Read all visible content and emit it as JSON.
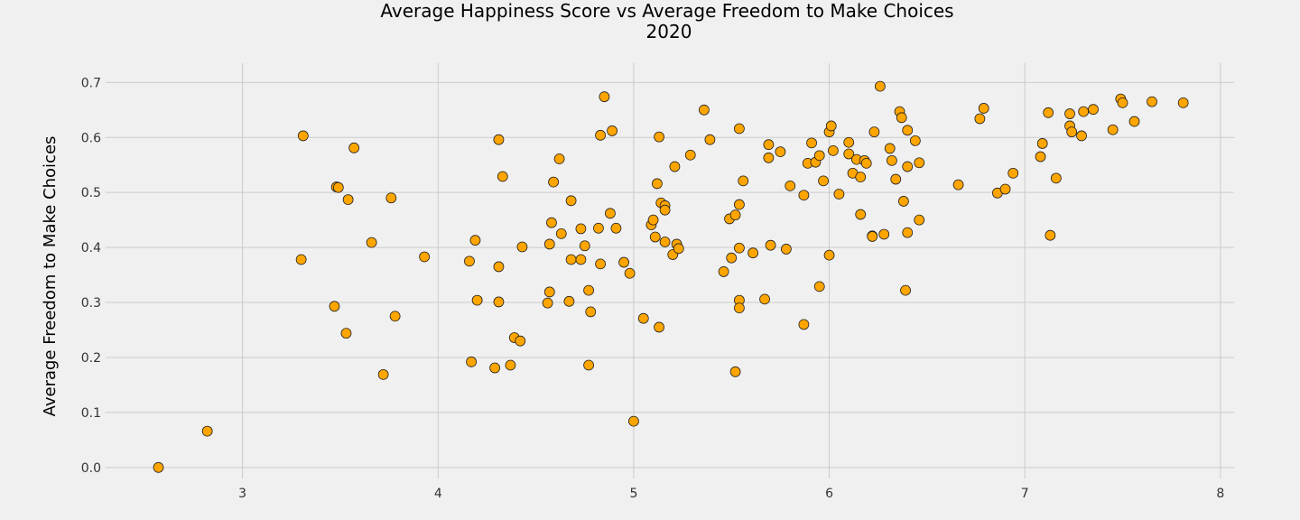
{
  "chart_data": {
    "type": "scatter",
    "title_lines": [
      "Average Happiness Score vs Average Freedom to Make Choices",
      "2020"
    ],
    "xlabel": "",
    "ylabel": "Average Freedom to Make Choices",
    "xlim": [
      2.3,
      8.07
    ],
    "ylim": [
      -0.02,
      0.735
    ],
    "x_ticks": [
      3,
      4,
      5,
      6,
      7,
      8
    ],
    "y_ticks": [
      0.0,
      0.1,
      0.2,
      0.3,
      0.4,
      0.5,
      0.6,
      0.7
    ],
    "y_tick_labels": [
      "0.0",
      "0.1",
      "0.2",
      "0.3",
      "0.4",
      "0.5",
      "0.6",
      "0.7"
    ],
    "grid": true,
    "marker_color": "#ffa500",
    "marker_edge_color": "#222222",
    "points": [
      [
        2.57,
        0.0
      ],
      [
        2.82,
        0.066
      ],
      [
        3.3,
        0.378
      ],
      [
        3.31,
        0.603
      ],
      [
        3.47,
        0.293
      ],
      [
        3.48,
        0.51
      ],
      [
        3.49,
        0.509
      ],
      [
        3.53,
        0.244
      ],
      [
        3.54,
        0.487
      ],
      [
        3.57,
        0.581
      ],
      [
        3.66,
        0.409
      ],
      [
        3.72,
        0.169
      ],
      [
        3.76,
        0.49
      ],
      [
        3.78,
        0.275
      ],
      [
        3.93,
        0.383
      ],
      [
        4.16,
        0.375
      ],
      [
        4.17,
        0.192
      ],
      [
        4.19,
        0.413
      ],
      [
        4.2,
        0.304
      ],
      [
        4.29,
        0.181
      ],
      [
        4.31,
        0.365
      ],
      [
        4.31,
        0.301
      ],
      [
        4.31,
        0.596
      ],
      [
        4.33,
        0.529
      ],
      [
        4.37,
        0.186
      ],
      [
        4.39,
        0.236
      ],
      [
        4.42,
        0.23
      ],
      [
        4.43,
        0.401
      ],
      [
        4.56,
        0.299
      ],
      [
        4.57,
        0.406
      ],
      [
        4.57,
        0.319
      ],
      [
        4.58,
        0.445
      ],
      [
        4.59,
        0.519
      ],
      [
        4.62,
        0.561
      ],
      [
        4.63,
        0.425
      ],
      [
        4.67,
        0.302
      ],
      [
        4.68,
        0.485
      ],
      [
        4.68,
        0.378
      ],
      [
        4.73,
        0.434
      ],
      [
        4.73,
        0.378
      ],
      [
        4.75,
        0.403
      ],
      [
        4.77,
        0.322
      ],
      [
        4.77,
        0.186
      ],
      [
        4.78,
        0.283
      ],
      [
        4.82,
        0.435
      ],
      [
        4.83,
        0.37
      ],
      [
        4.83,
        0.604
      ],
      [
        4.85,
        0.674
      ],
      [
        4.88,
        0.462
      ],
      [
        4.89,
        0.612
      ],
      [
        4.91,
        0.435
      ],
      [
        4.95,
        0.373
      ],
      [
        4.98,
        0.353
      ],
      [
        5.0,
        0.084
      ],
      [
        5.05,
        0.271
      ],
      [
        5.09,
        0.441
      ],
      [
        5.1,
        0.45
      ],
      [
        5.11,
        0.419
      ],
      [
        5.12,
        0.516
      ],
      [
        5.13,
        0.601
      ],
      [
        5.13,
        0.255
      ],
      [
        5.14,
        0.481
      ],
      [
        5.16,
        0.476
      ],
      [
        5.16,
        0.468
      ],
      [
        5.16,
        0.41
      ],
      [
        5.2,
        0.387
      ],
      [
        5.21,
        0.547
      ],
      [
        5.22,
        0.406
      ],
      [
        5.23,
        0.398
      ],
      [
        5.29,
        0.568
      ],
      [
        5.36,
        0.65
      ],
      [
        5.39,
        0.596
      ],
      [
        5.46,
        0.356
      ],
      [
        5.49,
        0.452
      ],
      [
        5.5,
        0.381
      ],
      [
        5.52,
        0.459
      ],
      [
        5.52,
        0.174
      ],
      [
        5.54,
        0.478
      ],
      [
        5.54,
        0.616
      ],
      [
        5.54,
        0.399
      ],
      [
        5.54,
        0.304
      ],
      [
        5.54,
        0.29
      ],
      [
        5.56,
        0.521
      ],
      [
        5.61,
        0.39
      ],
      [
        5.67,
        0.306
      ],
      [
        5.69,
        0.587
      ],
      [
        5.69,
        0.563
      ],
      [
        5.7,
        0.404
      ],
      [
        5.75,
        0.574
      ],
      [
        5.78,
        0.397
      ],
      [
        5.8,
        0.512
      ],
      [
        5.87,
        0.26
      ],
      [
        5.87,
        0.495
      ],
      [
        5.89,
        0.553
      ],
      [
        5.91,
        0.59
      ],
      [
        5.93,
        0.555
      ],
      [
        5.95,
        0.567
      ],
      [
        5.95,
        0.329
      ],
      [
        5.97,
        0.521
      ],
      [
        6.0,
        0.386
      ],
      [
        6.0,
        0.61
      ],
      [
        6.01,
        0.621
      ],
      [
        6.02,
        0.576
      ],
      [
        6.05,
        0.497
      ],
      [
        6.1,
        0.591
      ],
      [
        6.1,
        0.57
      ],
      [
        6.12,
        0.535
      ],
      [
        6.14,
        0.56
      ],
      [
        6.16,
        0.46
      ],
      [
        6.16,
        0.528
      ],
      [
        6.18,
        0.558
      ],
      [
        6.19,
        0.553
      ],
      [
        6.22,
        0.421
      ],
      [
        6.22,
        0.42
      ],
      [
        6.23,
        0.61
      ],
      [
        6.26,
        0.693
      ],
      [
        6.28,
        0.424
      ],
      [
        6.31,
        0.58
      ],
      [
        6.32,
        0.558
      ],
      [
        6.34,
        0.524
      ],
      [
        6.36,
        0.647
      ],
      [
        6.37,
        0.636
      ],
      [
        6.38,
        0.484
      ],
      [
        6.39,
        0.322
      ],
      [
        6.4,
        0.613
      ],
      [
        6.4,
        0.427
      ],
      [
        6.4,
        0.547
      ],
      [
        6.44,
        0.594
      ],
      [
        6.46,
        0.45
      ],
      [
        6.46,
        0.554
      ],
      [
        6.66,
        0.514
      ],
      [
        6.77,
        0.634
      ],
      [
        6.79,
        0.653
      ],
      [
        6.86,
        0.499
      ],
      [
        6.9,
        0.506
      ],
      [
        6.94,
        0.535
      ],
      [
        7.08,
        0.565
      ],
      [
        7.09,
        0.589
      ],
      [
        7.12,
        0.645
      ],
      [
        7.13,
        0.422
      ],
      [
        7.16,
        0.526
      ],
      [
        7.23,
        0.621
      ],
      [
        7.23,
        0.643
      ],
      [
        7.24,
        0.61
      ],
      [
        7.29,
        0.603
      ],
      [
        7.3,
        0.647
      ],
      [
        7.35,
        0.651
      ],
      [
        7.45,
        0.614
      ],
      [
        7.49,
        0.67
      ],
      [
        7.5,
        0.663
      ],
      [
        7.56,
        0.629
      ],
      [
        7.65,
        0.665
      ],
      [
        7.81,
        0.663
      ]
    ]
  }
}
